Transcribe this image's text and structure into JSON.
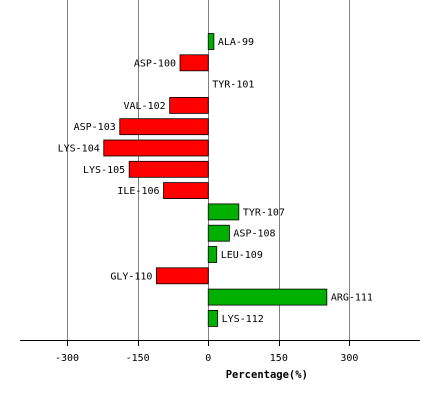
{
  "chart_data": {
    "type": "bar",
    "orientation": "horizontal",
    "title": "",
    "xlabel": "Percentage(%)",
    "ylabel": "",
    "xlim": [
      -400,
      450
    ],
    "xticks": [
      -300,
      -150,
      0,
      150,
      300
    ],
    "xtick_labels": [
      "-300",
      "-150",
      "0",
      "150",
      "300"
    ],
    "grid": true,
    "legend": "none",
    "colors": {
      "positive": "#00b000",
      "negative": "#ff0000",
      "edge": "#000000",
      "grid": "#808080"
    },
    "categories": [
      "ALA-99",
      "ASP-100",
      "TYR-101",
      "VAL-102",
      "ASP-103",
      "LYS-104",
      "LYS-105",
      "ILE-106",
      "TYR-107",
      "ASP-108",
      "LEU-109",
      "GLY-110",
      "ARG-111",
      "LYS-112"
    ],
    "values": [
      12,
      -60,
      0,
      -82,
      -188,
      -222,
      -168,
      -95,
      65,
      45,
      18,
      -110,
      252,
      20
    ]
  }
}
